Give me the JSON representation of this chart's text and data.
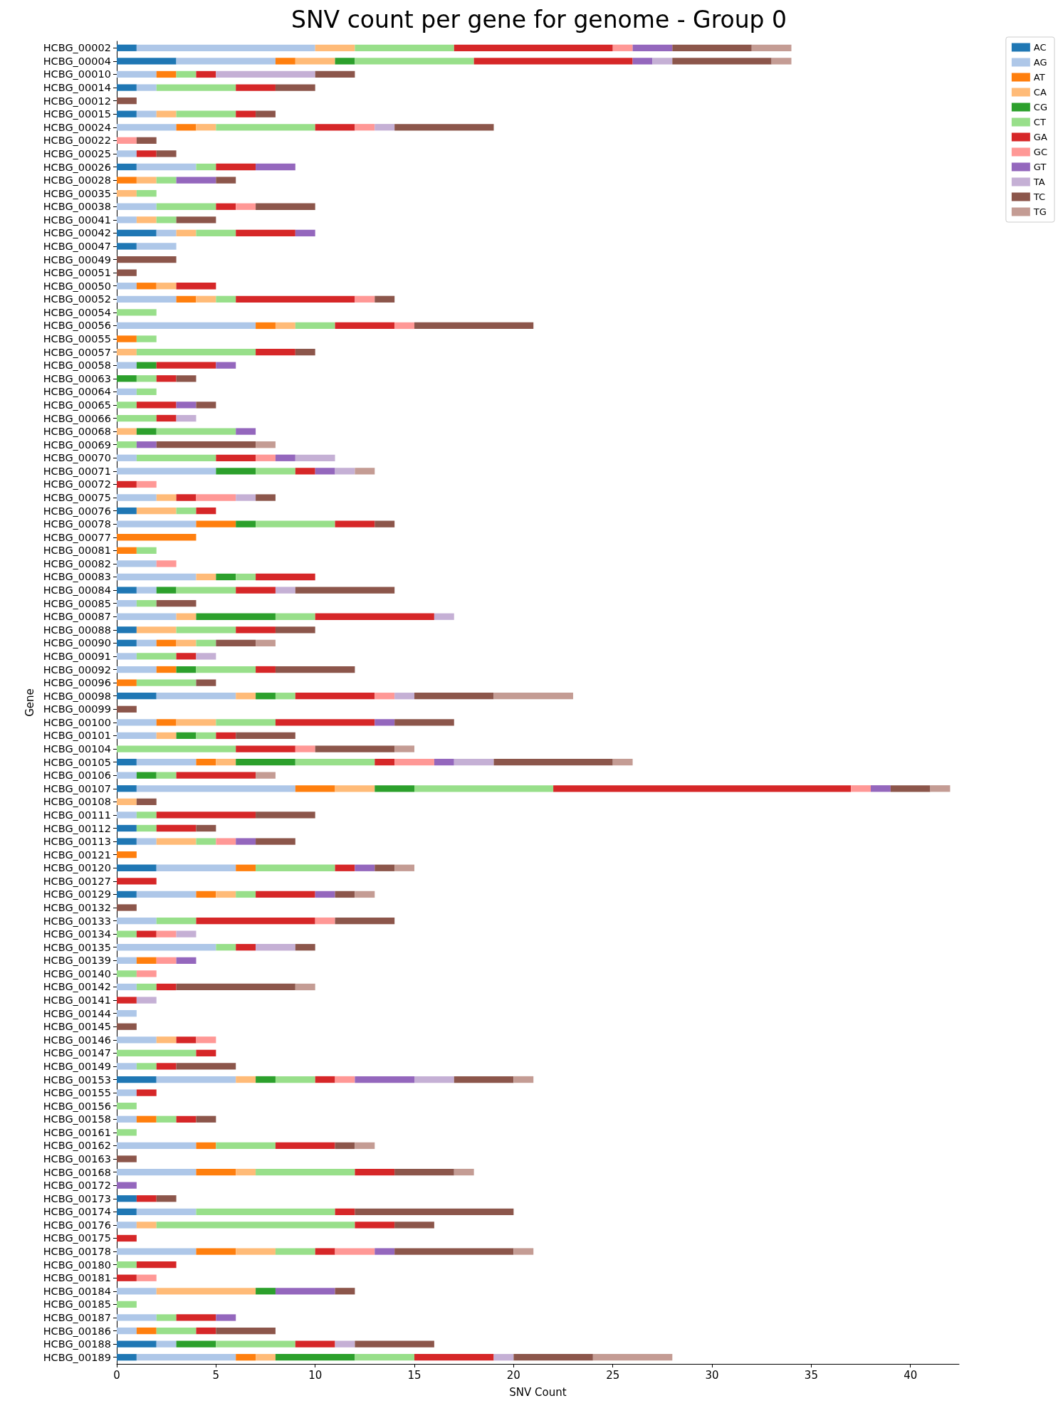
{
  "chart_data": {
    "type": "bar",
    "title": "SNV count per gene for genome - Group 0",
    "xlabel": "SNV Count",
    "ylabel": "Gene",
    "orientation": "horizontal",
    "stacked": true,
    "legend": "top right",
    "grid": false,
    "xlim": [
      0,
      42.45
    ],
    "xticks": [
      0,
      5,
      10,
      15,
      20,
      25,
      30,
      35,
      40
    ],
    "categories": [
      "HCBG_00002",
      "HCBG_00004",
      "HCBG_00010",
      "HCBG_00014",
      "HCBG_00012",
      "HCBG_00015",
      "HCBG_00024",
      "HCBG_00022",
      "HCBG_00025",
      "HCBG_00026",
      "HCBG_00028",
      "HCBG_00035",
      "HCBG_00038",
      "HCBG_00041",
      "HCBG_00042",
      "HCBG_00047",
      "HCBG_00049",
      "HCBG_00051",
      "HCBG_00050",
      "HCBG_00052",
      "HCBG_00054",
      "HCBG_00056",
      "HCBG_00055",
      "HCBG_00057",
      "HCBG_00058",
      "HCBG_00063",
      "HCBG_00064",
      "HCBG_00065",
      "HCBG_00066",
      "HCBG_00068",
      "HCBG_00069",
      "HCBG_00070",
      "HCBG_00071",
      "HCBG_00072",
      "HCBG_00075",
      "HCBG_00076",
      "HCBG_00078",
      "HCBG_00077",
      "HCBG_00081",
      "HCBG_00082",
      "HCBG_00083",
      "HCBG_00084",
      "HCBG_00085",
      "HCBG_00087",
      "HCBG_00088",
      "HCBG_00090",
      "HCBG_00091",
      "HCBG_00092",
      "HCBG_00096",
      "HCBG_00098",
      "HCBG_00099",
      "HCBG_00100",
      "HCBG_00101",
      "HCBG_00104",
      "HCBG_00105",
      "HCBG_00106",
      "HCBG_00107",
      "HCBG_00108",
      "HCBG_00111",
      "HCBG_00112",
      "HCBG_00113",
      "HCBG_00121",
      "HCBG_00120",
      "HCBG_00127",
      "HCBG_00129",
      "HCBG_00132",
      "HCBG_00133",
      "HCBG_00134",
      "HCBG_00135",
      "HCBG_00139",
      "HCBG_00140",
      "HCBG_00142",
      "HCBG_00141",
      "HCBG_00144",
      "HCBG_00145",
      "HCBG_00146",
      "HCBG_00147",
      "HCBG_00149",
      "HCBG_00153",
      "HCBG_00155",
      "HCBG_00156",
      "HCBG_00158",
      "HCBG_00161",
      "HCBG_00162",
      "HCBG_00163",
      "HCBG_00168",
      "HCBG_00172",
      "HCBG_00173",
      "HCBG_00174",
      "HCBG_00176",
      "HCBG_00175",
      "HCBG_00178",
      "HCBG_00180",
      "HCBG_00181",
      "HCBG_00184",
      "HCBG_00185",
      "HCBG_00187",
      "HCBG_00186",
      "HCBG_00188",
      "HCBG_00189"
    ],
    "series": [
      {
        "name": "AC",
        "color": "#1f77b4",
        "values": [
          1,
          3,
          0,
          1,
          0,
          1,
          0,
          0,
          0,
          1,
          0,
          0,
          0,
          0,
          2,
          1,
          0,
          0,
          0,
          0,
          0,
          0,
          0,
          0,
          0,
          0,
          0,
          0,
          0,
          0,
          0,
          0,
          0,
          0,
          0,
          1,
          0,
          0,
          0,
          0,
          0,
          1,
          0,
          0,
          1,
          1,
          0,
          0,
          0,
          2,
          0,
          0,
          0,
          0,
          1,
          0,
          1,
          0,
          0,
          1,
          1,
          0,
          2,
          0,
          1,
          0,
          0,
          0,
          0,
          0,
          0,
          0,
          0,
          0,
          0,
          0,
          0,
          0,
          2,
          0,
          0,
          0,
          0,
          0,
          0,
          0,
          0,
          1,
          1,
          0,
          0,
          0,
          0,
          0,
          0,
          0,
          0,
          0,
          2,
          1
        ]
      },
      {
        "name": "AG",
        "color": "#aec7e8",
        "values": [
          9,
          5,
          2,
          1,
          0,
          1,
          3,
          0,
          1,
          3,
          0,
          0,
          2,
          1,
          1,
          2,
          0,
          0,
          1,
          3,
          0,
          7,
          0,
          0,
          1,
          0,
          1,
          0,
          0,
          0,
          0,
          1,
          5,
          0,
          2,
          0,
          4,
          0,
          0,
          2,
          4,
          1,
          1,
          3,
          0,
          1,
          1,
          2,
          0,
          4,
          0,
          2,
          2,
          0,
          3,
          1,
          8,
          0,
          1,
          0,
          1,
          0,
          4,
          0,
          3,
          0,
          2,
          0,
          5,
          1,
          0,
          1,
          0,
          1,
          0,
          2,
          0,
          1,
          4,
          1,
          0,
          1,
          0,
          4,
          0,
          4,
          0,
          0,
          3,
          1,
          0,
          4,
          0,
          0,
          2,
          0,
          2,
          1,
          1,
          5
        ]
      },
      {
        "name": "AT",
        "color": "#ff7f0e",
        "values": [
          0,
          1,
          1,
          0,
          0,
          0,
          1,
          0,
          0,
          0,
          1,
          0,
          0,
          0,
          0,
          0,
          0,
          0,
          1,
          1,
          0,
          1,
          1,
          0,
          0,
          0,
          0,
          0,
          0,
          0,
          0,
          0,
          0,
          0,
          0,
          0,
          2,
          4,
          1,
          0,
          0,
          0,
          0,
          0,
          0,
          1,
          0,
          1,
          1,
          0,
          0,
          1,
          0,
          0,
          1,
          0,
          2,
          0,
          0,
          0,
          0,
          1,
          1,
          0,
          1,
          0,
          0,
          0,
          0,
          1,
          0,
          0,
          0,
          0,
          0,
          0,
          0,
          0,
          0,
          0,
          0,
          1,
          0,
          1,
          0,
          2,
          0,
          0,
          0,
          0,
          0,
          2,
          0,
          0,
          0,
          0,
          0,
          1,
          0,
          1
        ]
      },
      {
        "name": "CA",
        "color": "#ffbb78",
        "values": [
          2,
          2,
          0,
          0,
          0,
          1,
          1,
          0,
          0,
          0,
          1,
          1,
          0,
          1,
          1,
          0,
          0,
          0,
          1,
          1,
          0,
          1,
          0,
          1,
          0,
          0,
          0,
          0,
          0,
          1,
          0,
          0,
          0,
          0,
          1,
          2,
          0,
          0,
          0,
          0,
          1,
          0,
          0,
          1,
          2,
          1,
          0,
          0,
          0,
          1,
          0,
          2,
          1,
          0,
          1,
          0,
          2,
          1,
          0,
          0,
          2,
          0,
          0,
          0,
          1,
          0,
          0,
          0,
          0,
          0,
          0,
          0,
          0,
          0,
          0,
          1,
          0,
          0,
          1,
          0,
          0,
          0,
          0,
          0,
          0,
          1,
          0,
          0,
          0,
          1,
          0,
          2,
          0,
          0,
          5,
          0,
          0,
          0,
          0,
          1
        ]
      },
      {
        "name": "CG",
        "color": "#2ca02c",
        "values": [
          0,
          1,
          0,
          0,
          0,
          0,
          0,
          0,
          0,
          0,
          0,
          0,
          0,
          0,
          0,
          0,
          0,
          0,
          0,
          0,
          0,
          0,
          0,
          0,
          1,
          1,
          0,
          0,
          0,
          1,
          0,
          0,
          2,
          0,
          0,
          0,
          1,
          0,
          0,
          0,
          1,
          1,
          0,
          4,
          0,
          0,
          0,
          1,
          0,
          1,
          0,
          0,
          1,
          0,
          3,
          1,
          2,
          0,
          0,
          0,
          0,
          0,
          0,
          0,
          0,
          0,
          0,
          0,
          0,
          0,
          0,
          0,
          0,
          0,
          0,
          0,
          0,
          0,
          1,
          0,
          0,
          0,
          0,
          0,
          0,
          0,
          0,
          0,
          0,
          0,
          0,
          0,
          0,
          0,
          1,
          0,
          0,
          0,
          2,
          4
        ]
      },
      {
        "name": "CT",
        "color": "#98df8a",
        "values": [
          5,
          6,
          1,
          4,
          0,
          3,
          5,
          0,
          0,
          1,
          1,
          1,
          3,
          1,
          2,
          0,
          0,
          0,
          0,
          1,
          2,
          2,
          1,
          6,
          0,
          1,
          1,
          1,
          2,
          4,
          1,
          4,
          2,
          0,
          0,
          1,
          4,
          0,
          1,
          0,
          1,
          3,
          1,
          2,
          3,
          1,
          2,
          3,
          3,
          1,
          0,
          3,
          1,
          6,
          4,
          1,
          7,
          0,
          1,
          1,
          1,
          0,
          4,
          0,
          1,
          0,
          2,
          1,
          1,
          0,
          1,
          1,
          0,
          0,
          0,
          0,
          4,
          1,
          2,
          0,
          1,
          1,
          1,
          3,
          0,
          5,
          0,
          0,
          7,
          10,
          0,
          2,
          1,
          0,
          0,
          1,
          1,
          2,
          4,
          3
        ]
      },
      {
        "name": "GA",
        "color": "#d62728",
        "values": [
          8,
          8,
          1,
          2,
          0,
          1,
          2,
          0,
          1,
          2,
          0,
          0,
          1,
          0,
          3,
          0,
          0,
          0,
          2,
          6,
          0,
          3,
          0,
          2,
          3,
          1,
          0,
          2,
          1,
          0,
          0,
          2,
          1,
          1,
          1,
          1,
          2,
          0,
          0,
          0,
          3,
          2,
          0,
          6,
          2,
          0,
          1,
          1,
          0,
          4,
          0,
          5,
          1,
          3,
          1,
          4,
          15,
          0,
          5,
          2,
          0,
          0,
          1,
          2,
          3,
          0,
          6,
          1,
          1,
          0,
          0,
          1,
          1,
          0,
          0,
          1,
          1,
          1,
          1,
          1,
          0,
          1,
          0,
          3,
          0,
          2,
          0,
          1,
          1,
          2,
          1,
          1,
          2,
          1,
          0,
          0,
          2,
          1,
          2,
          4
        ]
      },
      {
        "name": "GC",
        "color": "#ff9896",
        "values": [
          1,
          0,
          0,
          0,
          0,
          0,
          1,
          1,
          0,
          0,
          0,
          0,
          1,
          0,
          0,
          0,
          0,
          0,
          0,
          1,
          0,
          1,
          0,
          0,
          0,
          0,
          0,
          0,
          0,
          0,
          0,
          1,
          0,
          1,
          2,
          0,
          0,
          0,
          0,
          1,
          0,
          0,
          0,
          0,
          0,
          0,
          0,
          0,
          0,
          1,
          0,
          0,
          0,
          1,
          2,
          0,
          1,
          0,
          0,
          0,
          1,
          0,
          0,
          0,
          0,
          0,
          1,
          1,
          0,
          1,
          1,
          0,
          0,
          0,
          0,
          1,
          0,
          0,
          1,
          0,
          0,
          0,
          0,
          0,
          0,
          0,
          0,
          0,
          0,
          0,
          0,
          2,
          0,
          1,
          0,
          0,
          0,
          0,
          0,
          0
        ]
      },
      {
        "name": "GT",
        "color": "#9467bd",
        "values": [
          2,
          1,
          0,
          0,
          0,
          0,
          0,
          0,
          0,
          2,
          2,
          0,
          0,
          0,
          1,
          0,
          0,
          0,
          0,
          0,
          0,
          0,
          0,
          0,
          1,
          0,
          0,
          1,
          0,
          1,
          1,
          1,
          1,
          0,
          0,
          0,
          0,
          0,
          0,
          0,
          0,
          0,
          0,
          0,
          0,
          0,
          0,
          0,
          0,
          0,
          0,
          1,
          0,
          0,
          1,
          0,
          1,
          0,
          0,
          0,
          1,
          0,
          1,
          0,
          1,
          0,
          0,
          0,
          0,
          1,
          0,
          0,
          0,
          0,
          0,
          0,
          0,
          0,
          3,
          0,
          0,
          0,
          0,
          0,
          0,
          0,
          1,
          0,
          0,
          0,
          0,
          1,
          0,
          0,
          3,
          0,
          1,
          0,
          0,
          0
        ]
      },
      {
        "name": "TA",
        "color": "#c5b0d5",
        "values": [
          0,
          1,
          5,
          0,
          0,
          0,
          1,
          0,
          0,
          0,
          0,
          0,
          0,
          0,
          0,
          0,
          0,
          0,
          0,
          0,
          0,
          0,
          0,
          0,
          0,
          0,
          0,
          0,
          1,
          0,
          0,
          2,
          1,
          0,
          1,
          0,
          0,
          0,
          0,
          0,
          0,
          1,
          0,
          1,
          0,
          0,
          1,
          0,
          0,
          1,
          0,
          0,
          0,
          0,
          2,
          0,
          0,
          0,
          0,
          0,
          0,
          0,
          0,
          0,
          0,
          0,
          0,
          1,
          2,
          0,
          0,
          0,
          1,
          0,
          0,
          0,
          0,
          0,
          2,
          0,
          0,
          0,
          0,
          0,
          0,
          0,
          0,
          0,
          0,
          0,
          0,
          0,
          0,
          0,
          0,
          0,
          0,
          0,
          1,
          1
        ]
      },
      {
        "name": "TC",
        "color": "#8c564b",
        "values": [
          4,
          5,
          2,
          2,
          1,
          1,
          5,
          1,
          1,
          0,
          1,
          0,
          3,
          2,
          0,
          0,
          3,
          1,
          0,
          1,
          0,
          6,
          0,
          1,
          0,
          1,
          0,
          1,
          0,
          0,
          5,
          0,
          0,
          0,
          1,
          0,
          1,
          0,
          0,
          0,
          0,
          5,
          2,
          0,
          2,
          2,
          0,
          4,
          1,
          4,
          1,
          3,
          3,
          4,
          6,
          0,
          2,
          1,
          3,
          1,
          2,
          0,
          1,
          0,
          1,
          1,
          3,
          0,
          1,
          0,
          0,
          6,
          0,
          0,
          1,
          0,
          0,
          3,
          3,
          0,
          0,
          1,
          0,
          1,
          1,
          3,
          0,
          1,
          8,
          2,
          0,
          6,
          0,
          0,
          1,
          0,
          0,
          3,
          4,
          4
        ]
      },
      {
        "name": "TG",
        "color": "#c49c94",
        "values": [
          2,
          1,
          0,
          0,
          0,
          0,
          0,
          0,
          0,
          0,
          0,
          0,
          0,
          0,
          0,
          0,
          0,
          0,
          0,
          0,
          0,
          0,
          0,
          0,
          0,
          0,
          0,
          0,
          0,
          0,
          1,
          0,
          1,
          0,
          0,
          0,
          0,
          0,
          0,
          0,
          0,
          0,
          0,
          0,
          0,
          1,
          0,
          0,
          0,
          4,
          0,
          0,
          0,
          1,
          1,
          1,
          1,
          0,
          0,
          0,
          0,
          0,
          1,
          0,
          1,
          0,
          0,
          0,
          0,
          0,
          0,
          1,
          0,
          0,
          0,
          0,
          0,
          0,
          1,
          0,
          0,
          0,
          0,
          1,
          0,
          1,
          0,
          0,
          0,
          0,
          0,
          1,
          0,
          0,
          0,
          0,
          0,
          0,
          0,
          4
        ]
      }
    ]
  }
}
